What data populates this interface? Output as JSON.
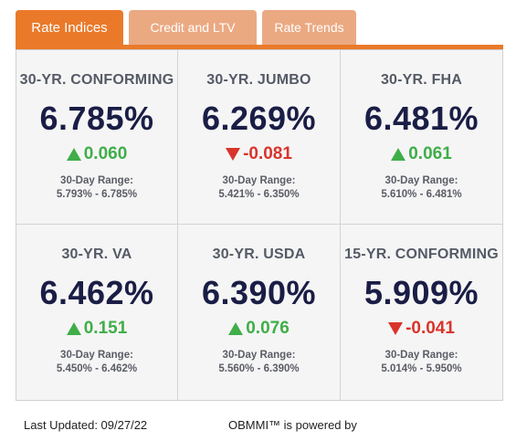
{
  "tabs": [
    {
      "label": "Rate Indices",
      "active": true
    },
    {
      "label": "Credit and LTV",
      "active": false
    },
    {
      "label": "Rate Trends",
      "active": false
    }
  ],
  "colors": {
    "accent": "#ea7a2a",
    "tab_inactive": "#eba982",
    "up": "#3fae49",
    "down": "#d9342b",
    "rate": "#1a1d45"
  },
  "cards": [
    {
      "title": "30-YR. CONFORMING",
      "rate": "6.785%",
      "direction": "up",
      "change": "0.060",
      "range_label": "30-Day Range:",
      "range": "5.793% - 6.785%"
    },
    {
      "title": "30-YR. JUMBO",
      "rate": "6.269%",
      "direction": "down",
      "change": "-0.081",
      "range_label": "30-Day Range:",
      "range": "5.421% - 6.350%"
    },
    {
      "title": "30-YR. FHA",
      "rate": "6.481%",
      "direction": "up",
      "change": "0.061",
      "range_label": "30-Day Range:",
      "range": "5.610% - 6.481%"
    },
    {
      "title": "30-YR. VA",
      "rate": "6.462%",
      "direction": "up",
      "change": "0.151",
      "range_label": "30-Day Range:",
      "range": "5.450% - 6.462%"
    },
    {
      "title": "30-YR. USDA",
      "rate": "6.390%",
      "direction": "up",
      "change": "0.076",
      "range_label": "30-Day Range:",
      "range": "5.560% - 6.390%"
    },
    {
      "title": "15-YR. CONFORMING",
      "rate": "5.909%",
      "direction": "down",
      "change": "-0.041",
      "range_label": "30-Day Range:",
      "range": "5.014% - 5.950%"
    }
  ],
  "footer": {
    "last_updated": "Last Updated: 09/27/22",
    "powered_by": "OBMMI™ is powered by"
  }
}
